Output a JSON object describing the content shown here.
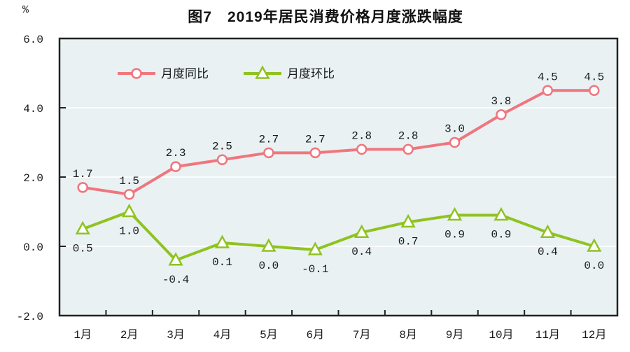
{
  "chart_data": {
    "type": "line",
    "title": "图7　2019年居民消费价格月度涨跌幅度",
    "ylabel": "%",
    "xlabel": "",
    "ylim": [
      -2.0,
      6.0
    ],
    "ytick_values": [
      6.0,
      4.0,
      2.0,
      0.0,
      -2.0
    ],
    "ytick_labels": [
      "6.0",
      "4.0",
      "2.0",
      "0.0",
      "-2.0"
    ],
    "gridline_values": [
      4.0,
      2.0,
      0.0
    ],
    "grid": "horizontal-only",
    "categories": [
      "1月",
      "2月",
      "3月",
      "4月",
      "5月",
      "6月",
      "7月",
      "8月",
      "9月",
      "10月",
      "11月",
      "12月"
    ],
    "legend_position": "top-inside",
    "plot_bg_color": "#e9f1f3",
    "gridline_color": "#fbfdfd",
    "axis_color": "#222222",
    "label_color": "#1a1a1a",
    "series": [
      {
        "name": "月度同比",
        "color": "#ef767e",
        "marker": "circle",
        "label_position": "above",
        "values": [
          1.7,
          1.5,
          2.3,
          2.5,
          2.7,
          2.7,
          2.8,
          2.8,
          3.0,
          3.8,
          4.5,
          4.5
        ]
      },
      {
        "name": "月度环比",
        "color": "#8fc31f",
        "marker": "triangle",
        "label_position": "below",
        "values": [
          0.5,
          1.0,
          -0.4,
          0.1,
          0.0,
          -0.1,
          0.4,
          0.7,
          0.9,
          0.9,
          0.4,
          0.0
        ]
      }
    ]
  }
}
